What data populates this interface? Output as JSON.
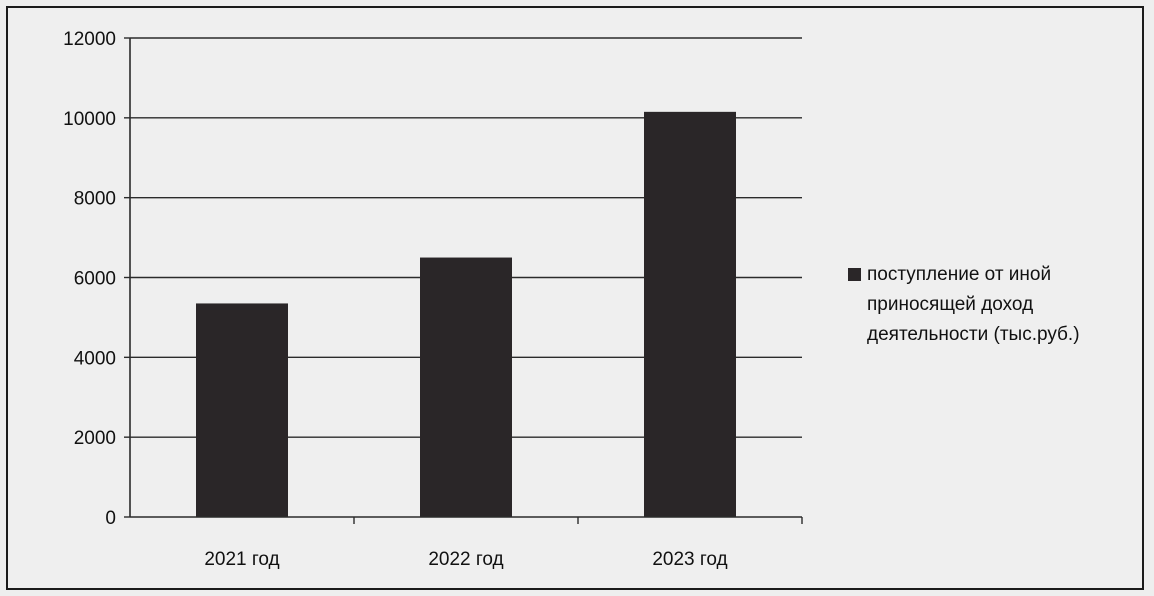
{
  "chart_data": {
    "type": "bar",
    "categories": [
      "2021 год",
      "2022 год",
      "2023 год"
    ],
    "series": [
      {
        "name": "поступление от иной приносящей доход деятельности (тыс.руб.)",
        "values": [
          5350,
          6500,
          10150
        ]
      }
    ],
    "ylim": [
      0,
      12000
    ],
    "yticks": [
      0,
      2000,
      4000,
      6000,
      8000,
      10000,
      12000
    ],
    "grid": true,
    "legend_position": "right",
    "bar_color": "#2a2628",
    "title": "",
    "xlabel": "",
    "ylabel": ""
  }
}
